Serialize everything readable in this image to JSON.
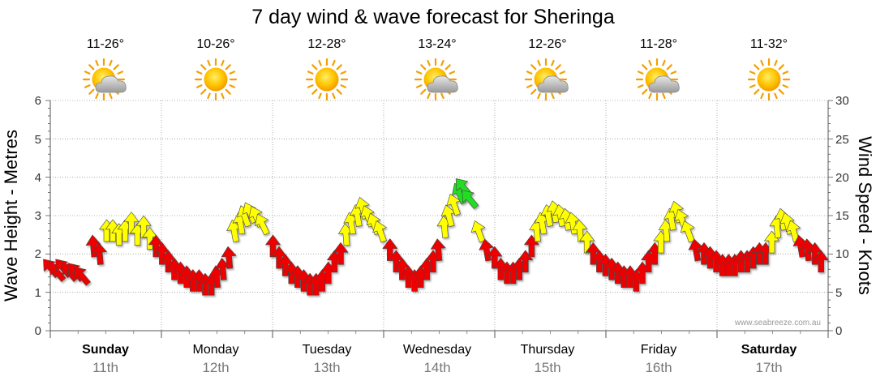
{
  "chart_data": {
    "type": "arrow-timeseries",
    "title": "7 day wind & wave forecast for Sheringa",
    "ylabel_left": "Wave Height - Metres",
    "ylabel_right": "Wind Speed - Knots",
    "left_ticks": [
      "0",
      "1",
      "2",
      "3",
      "4",
      "5",
      "6"
    ],
    "right_ticks": [
      "0",
      "5",
      "10",
      "15",
      "20",
      "25",
      "30"
    ],
    "ylim_left": [
      0,
      6
    ],
    "ylim_right": [
      0,
      30
    ],
    "grid": true,
    "credit": "www.seabreeze.com.au",
    "days": [
      {
        "name": "Sunday",
        "date": "11th",
        "temps": "11-26°",
        "weather": "partly-cloudy",
        "bold": true
      },
      {
        "name": "Monday",
        "date": "12th",
        "temps": "10-26°",
        "weather": "sunny",
        "bold": false
      },
      {
        "name": "Tuesday",
        "date": "13th",
        "temps": "12-28°",
        "weather": "sunny",
        "bold": false
      },
      {
        "name": "Wednesday",
        "date": "14th",
        "temps": "13-24°",
        "weather": "partly-cloudy",
        "bold": false
      },
      {
        "name": "Thursday",
        "date": "15th",
        "temps": "12-26°",
        "weather": "partly-cloudy",
        "bold": false
      },
      {
        "name": "Friday",
        "date": "16th",
        "temps": "11-28°",
        "weather": "partly-cloudy",
        "bold": false
      },
      {
        "name": "Saturday",
        "date": "17th",
        "temps": "11-32°",
        "weather": "sunny",
        "bold": true
      }
    ],
    "colors": {
      "low": "#ee0000",
      "mid": "#ffff00",
      "high": "#22dd22"
    },
    "wind_knots": [
      8.5,
      8,
      8.5,
      8,
      8,
      7.5,
      11,
      10,
      13,
      13,
      12.5,
      13,
      14,
      12.5,
      13.5,
      12,
      11,
      10,
      9,
      8,
      7.5,
      7,
      6.5,
      6.5,
      6,
      6,
      7,
      8,
      9.5,
      13,
      14,
      15,
      15.5,
      15,
      14,
      11,
      9.5,
      8.5,
      7.5,
      7,
      6.5,
      6,
      6,
      6.5,
      7.5,
      9,
      10,
      12.5,
      14,
      15,
      16,
      15,
      14,
      13,
      10.5,
      9,
      8,
      7,
      6.5,
      7,
      8,
      9,
      10.5,
      13.5,
      15,
      16.5,
      18,
      19,
      17.5,
      13,
      10.5,
      9.5,
      8,
      7.5,
      7.5,
      8,
      9,
      11,
      13,
      14,
      15,
      15.5,
      15,
      14.5,
      14,
      13,
      11.5,
      10,
      9,
      8.5,
      8,
      7.5,
      7,
      7,
      6.5,
      7.5,
      9,
      10,
      11.5,
      13,
      14.5,
      15.5,
      14.5,
      13,
      10.5,
      10,
      9.5,
      9,
      8.5,
      8.5,
      8.5,
      9,
      9,
      9.5,
      10,
      10,
      11.5,
      13.5,
      14.5,
      14,
      13,
      11,
      10.5,
      10,
      9
    ],
    "wind_dir_deg": [
      0,
      0,
      0,
      0,
      0,
      0,
      35,
      35,
      40,
      40,
      40,
      40,
      40,
      40,
      40,
      40,
      40,
      40,
      40,
      40,
      40,
      40,
      40,
      40,
      40,
      40,
      35,
      35,
      35,
      30,
      30,
      20,
      15,
      15,
      15,
      40,
      40,
      40,
      40,
      40,
      40,
      40,
      40,
      40,
      40,
      40,
      40,
      35,
      30,
      30,
      25,
      20,
      20,
      20,
      40,
      40,
      40,
      40,
      40,
      40,
      40,
      40,
      35,
      35,
      25,
      20,
      15,
      0,
      0,
      20,
      30,
      40,
      40,
      40,
      40,
      40,
      40,
      40,
      35,
      30,
      30,
      30,
      30,
      30,
      30,
      35,
      40,
      40,
      40,
      40,
      40,
      40,
      40,
      40,
      40,
      40,
      40,
      40,
      40,
      35,
      30,
      25,
      20,
      20,
      30,
      40,
      40,
      40,
      40,
      40,
      40,
      40,
      40,
      40,
      40,
      40,
      40,
      35,
      30,
      25,
      25,
      30,
      35,
      40,
      40
    ]
  }
}
